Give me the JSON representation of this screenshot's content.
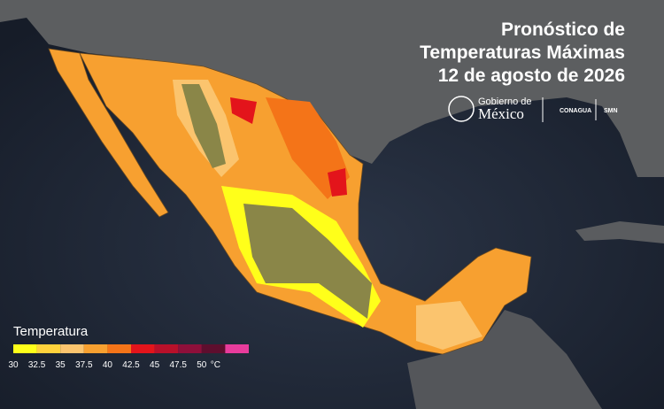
{
  "header": {
    "title_lines": [
      "Pronóstico de",
      "Temperaturas Máximas",
      "12 de agosto de 2026"
    ]
  },
  "logos": {
    "gobierno_line1": "Gobierno de",
    "gobierno_line2": "México",
    "conagua": "CONAGUA",
    "smn": "SMN"
  },
  "legend": {
    "title": "Temperatura",
    "ticks": [
      30,
      32.5,
      35,
      37.5,
      40,
      42.5,
      45,
      47.5,
      50
    ],
    "unit": "°C",
    "colors": [
      "#ffff1a",
      "#ffd23c",
      "#fbc46e",
      "#f7a030",
      "#f47418",
      "#e3141b",
      "#b8102a",
      "#8e0f3a",
      "#5e0e2e",
      "#e83c9c"
    ]
  }
}
